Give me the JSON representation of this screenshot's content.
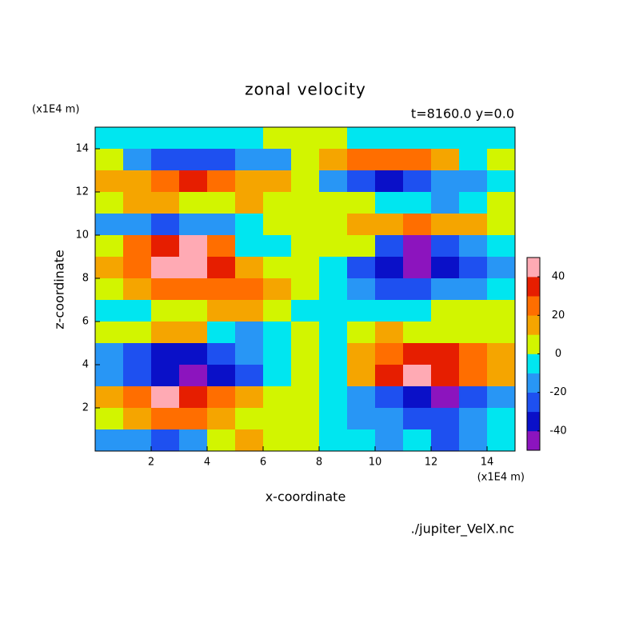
{
  "chart_data": {
    "type": "contour",
    "title": "zonal velocity",
    "subtitle": "t=8160.0 y=0.0",
    "x_label": "x-coordinate",
    "y_label": "z-coordinate",
    "x_unit": "(x1E4 m)",
    "y_unit": "(x1E4 m)",
    "footer": "./jupiter_VelX.nc",
    "xlim": [
      0,
      15
    ],
    "ylim": [
      0,
      15
    ],
    "xticks": [
      2,
      4,
      6,
      8,
      10,
      12,
      14
    ],
    "yticks": [
      2,
      4,
      6,
      8,
      10,
      12,
      14
    ],
    "x": [
      0.5,
      1.5,
      2.5,
      3.5,
      4.5,
      5.5,
      6.5,
      7.5,
      8.5,
      9.5,
      10.5,
      11.5,
      12.5,
      13.5,
      14.5
    ],
    "y": [
      14.5,
      13.5,
      12.5,
      11.5,
      10.5,
      9.5,
      8.5,
      7.5,
      6.5,
      5.5,
      4.5,
      3.5,
      2.5,
      1.5,
      0.5
    ],
    "z": [
      [
        -5,
        -5,
        -5,
        -5,
        -5,
        -5,
        5,
        5,
        5,
        -5,
        -5,
        -5,
        -5,
        -5,
        -5
      ],
      [
        5,
        -15,
        -25,
        -25,
        -25,
        -15,
        -15,
        5,
        15,
        25,
        25,
        25,
        15,
        -5,
        5
      ],
      [
        15,
        15,
        25,
        35,
        25,
        15,
        15,
        5,
        -15,
        -25,
        -35,
        -25,
        -15,
        -15,
        -5
      ],
      [
        5,
        15,
        15,
        5,
        5,
        15,
        5,
        5,
        5,
        5,
        -5,
        -5,
        -15,
        -5,
        5
      ],
      [
        -15,
        -15,
        -25,
        -15,
        -15,
        -5,
        5,
        5,
        5,
        15,
        15,
        25,
        15,
        15,
        5
      ],
      [
        5,
        25,
        35,
        45,
        25,
        -5,
        -5,
        5,
        5,
        5,
        -25,
        -45,
        -25,
        -15,
        -5
      ],
      [
        15,
        25,
        45,
        45,
        35,
        15,
        5,
        5,
        -5,
        -25,
        -35,
        -45,
        -35,
        -25,
        -15
      ],
      [
        5,
        15,
        25,
        25,
        25,
        25,
        15,
        5,
        -5,
        -15,
        -25,
        -25,
        -15,
        -15,
        -5
      ],
      [
        -5,
        -5,
        5,
        5,
        15,
        15,
        5,
        -5,
        -5,
        -5,
        -5,
        -5,
        5,
        5,
        5
      ],
      [
        5,
        5,
        15,
        15,
        -5,
        -15,
        -5,
        5,
        -5,
        5,
        15,
        5,
        5,
        5,
        5
      ],
      [
        -15,
        -25,
        -35,
        -35,
        -25,
        -15,
        -5,
        5,
        -5,
        15,
        25,
        35,
        35,
        25,
        15
      ],
      [
        -15,
        -25,
        -35,
        -45,
        -35,
        -25,
        -5,
        5,
        -5,
        15,
        35,
        45,
        35,
        25,
        15
      ],
      [
        15,
        25,
        45,
        35,
        25,
        15,
        5,
        5,
        -5,
        -15,
        -25,
        -35,
        -45,
        -25,
        -15
      ],
      [
        5,
        15,
        25,
        25,
        15,
        5,
        5,
        5,
        -5,
        -15,
        -15,
        -25,
        -25,
        -15,
        -5
      ],
      [
        -15,
        -15,
        -25,
        -15,
        5,
        15,
        5,
        5,
        -5,
        -5,
        -15,
        -5,
        -25,
        -15,
        -5
      ]
    ],
    "colorbar": {
      "lim": [
        -50,
        50
      ],
      "ticks": [
        -40,
        -20,
        0,
        20,
        40
      ],
      "colors": [
        "#8c14be",
        "#0a10c8",
        "#1e50f0",
        "#2896f5",
        "#00e6f0",
        "#d2f500",
        "#f5a500",
        "#ff6e00",
        "#e61e00",
        "#ffaab4"
      ]
    }
  }
}
